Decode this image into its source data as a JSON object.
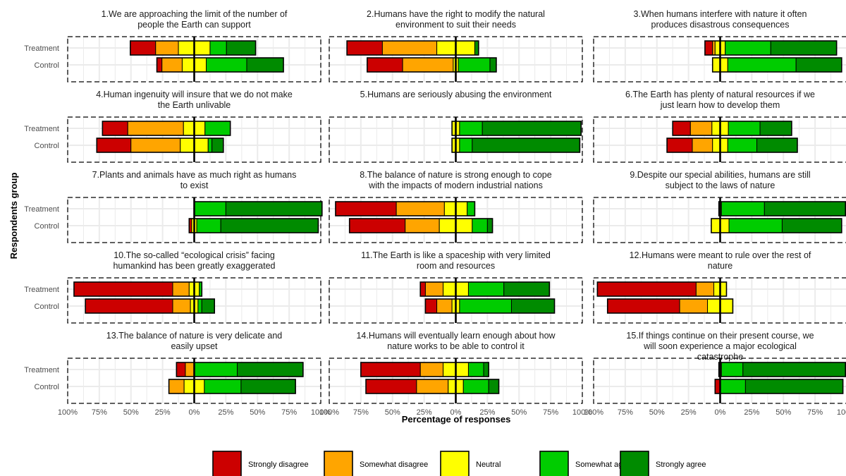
{
  "chart_data": {
    "type": "bar",
    "subtype": "diverging stacked bar (Likert)",
    "xlabel": "Percentage of responses",
    "ylabel": "Respondents group",
    "groups": [
      "Treatment",
      "Control"
    ],
    "xlim": [
      -100,
      100
    ],
    "x_ticks": [
      -100,
      -75,
      -50,
      -25,
      0,
      25,
      50,
      75,
      100
    ],
    "x_tick_labels": [
      "100%",
      "75%",
      "50%",
      "25%",
      "0%",
      "25%",
      "50%",
      "75%",
      "100%"
    ],
    "grid": true,
    "legend_position": "bottom",
    "categories": [
      "Strongly disagree",
      "Somewhat disagree",
      "Neutral",
      "Somewhat agree",
      "Strongly agree"
    ],
    "colors": [
      "#cc0000",
      "#ffa500",
      "#ffff00",
      "#00cc00",
      "#008b00"
    ],
    "panels": [
      {
        "title": "1.We are approaching the limit of the number of people the Earth can support",
        "series": [
          {
            "name": "Treatment",
            "values": [
              20,
              18,
              25,
              13,
              23
            ]
          },
          {
            "name": "Control",
            "values": [
              4,
              16,
              19,
              32,
              29
            ]
          }
        ]
      },
      {
        "title": "2.Humans have the right to modify the natural environment to suit their needs",
        "series": [
          {
            "name": "Treatment",
            "values": [
              28,
              43,
              30,
              0,
              3
            ]
          },
          {
            "name": "Control",
            "values": [
              28,
              40,
              4,
              25,
              5
            ]
          }
        ]
      },
      {
        "title": "3.When humans interfere with nature it often produces disastrous consequences",
        "series": [
          {
            "name": "Treatment",
            "values": [
              6,
              2,
              8,
              36,
              52
            ]
          },
          {
            "name": "Control",
            "values": [
              0,
              0,
              12,
              54,
              36
            ]
          }
        ]
      },
      {
        "title": "4.Human ingenuity will insure that we do not make the Earth unlivable",
        "series": [
          {
            "name": "Treatment",
            "values": [
              20,
              44,
              17,
              20,
              0
            ]
          },
          {
            "name": "Control",
            "values": [
              27,
              39,
              22,
              3,
              9
            ]
          }
        ]
      },
      {
        "title": "5.Humans are seriously abusing the environment",
        "series": [
          {
            "name": "Treatment",
            "values": [
              0,
              0,
              6,
              18,
              78
            ]
          },
          {
            "name": "Control",
            "values": [
              0,
              0,
              6,
              10,
              85
            ]
          }
        ]
      },
      {
        "title": "6.The Earth has plenty of natural resources if we just learn how to develop them",
        "series": [
          {
            "name": "Treatment",
            "values": [
              14,
              17,
              13,
              25,
              25
            ]
          },
          {
            "name": "Control",
            "values": [
              20,
              16,
              12,
              23,
              32
            ]
          }
        ]
      },
      {
        "title": "7.Plants and animals have as much right as humans to exist",
        "series": [
          {
            "name": "Treatment",
            "values": [
              0,
              0,
              0,
              25,
              76
            ]
          },
          {
            "name": "Control",
            "values": [
              2,
              0,
              4,
              19,
              77
            ]
          }
        ]
      },
      {
        "title": "8.The balance of nature is strong enough to cope with the impacts of modern industrial nations",
        "series": [
          {
            "name": "Treatment",
            "values": [
              48,
              38,
              18,
              6,
              0
            ]
          },
          {
            "name": "Control",
            "values": [
              44,
              27,
              26,
              12,
              4
            ]
          }
        ]
      },
      {
        "title": "9.Despite our special abilities, humans are still subject to the laws of nature",
        "series": [
          {
            "name": "Treatment",
            "values": [
              0,
              0,
              2,
              34,
              64
            ]
          },
          {
            "name": "Control",
            "values": [
              0,
              0,
              14,
              42,
              47
            ]
          }
        ]
      },
      {
        "title": "10.The so-called “ecological crisis” facing humankind has been greatly exaggerated",
        "series": [
          {
            "name": "Treatment",
            "values": [
              78,
              13,
              8,
              2,
              0
            ]
          },
          {
            "name": "Control",
            "values": [
              69,
              14,
              6,
              3,
              10
            ]
          }
        ]
      },
      {
        "title": "11.The Earth is like a spaceship with very limited room and resources",
        "series": [
          {
            "name": "Treatment",
            "values": [
              4,
              14,
              20,
              28,
              36
            ]
          },
          {
            "name": "Control",
            "values": [
              9,
              12,
              6,
              41,
              34
            ]
          }
        ]
      },
      {
        "title": "12.Humans were meant to rule over the rest of nature",
        "series": [
          {
            "name": "Treatment",
            "values": [
              78,
              14,
              10,
              0,
              0
            ]
          },
          {
            "name": "Control",
            "values": [
              57,
              22,
              20,
              0,
              0
            ]
          }
        ]
      },
      {
        "title": "13.The balance of nature is very delicate and easily upset",
        "series": [
          {
            "name": "Treatment",
            "values": [
              7,
              7,
              0,
              34,
              52
            ]
          },
          {
            "name": "Control",
            "values": [
              0,
              12,
              16,
              29,
              43
            ]
          }
        ]
      },
      {
        "title": "14.Humans will eventually learn enough about how nature works to be able to control it",
        "series": [
          {
            "name": "Treatment",
            "values": [
              47,
              18,
              20,
              12,
              4
            ]
          },
          {
            "name": "Control",
            "values": [
              40,
              25,
              12,
              20,
              8
            ]
          }
        ]
      },
      {
        "title": "15.If things continue on their present course, we will soon experience a major ecological catastrophe",
        "series": [
          {
            "name": "Treatment",
            "values": [
              0,
              0,
              2,
              17,
              81
            ]
          },
          {
            "name": "Control",
            "values": [
              4,
              0,
              0,
              20,
              77
            ]
          }
        ]
      }
    ]
  }
}
